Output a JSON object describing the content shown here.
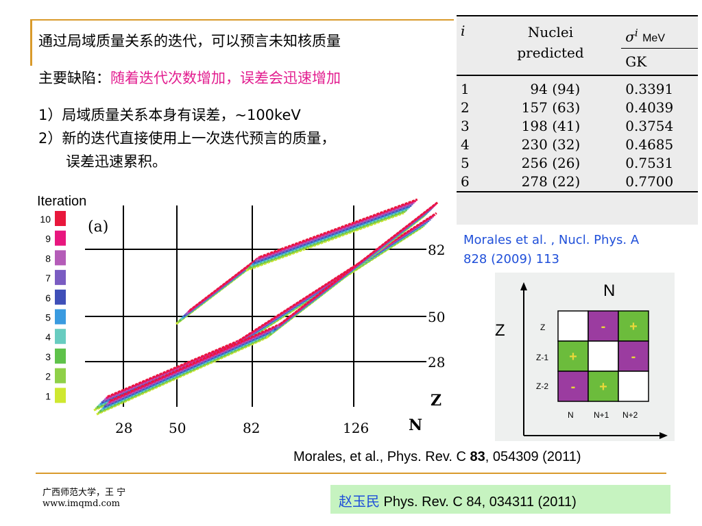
{
  "slide": {
    "line1": "通过局域质量关系的迭代，可以预言未知核质量",
    "line2_prefix": "主要缺陷：",
    "line2_highlight": "随着迭代次数增加，误差会迅速增加",
    "point1": "1）局域质量关系本身有误差，~100keV",
    "point2": "2）新的迭代直接使用上一次迭代预言的质量，",
    "point2_cont": "误差迅速累积。"
  },
  "table": {
    "header_i": "i",
    "header_nuclei_1": "Nuclei",
    "header_nuclei_2": "predicted",
    "header_sigma_symbol": "σ",
    "header_sigma_sup": "i",
    "header_sigma_unit": "MeV",
    "header_gk": "GK",
    "rows": [
      {
        "i": "1",
        "nuclei": "94 (94)",
        "gk": "0.3391"
      },
      {
        "i": "2",
        "nuclei": "157 (63)",
        "gk": "0.4039"
      },
      {
        "i": "3",
        "nuclei": "198 (41)",
        "gk": "0.3754"
      },
      {
        "i": "4",
        "nuclei": "230 (32)",
        "gk": "0.4685"
      },
      {
        "i": "5",
        "nuclei": "256 (26)",
        "gk": "0.7531"
      },
      {
        "i": "6",
        "nuclei": "278 (22)",
        "gk": "0.7700"
      }
    ]
  },
  "citations": {
    "table_ref_1": "Morales et al. , Nucl. Phys. A",
    "table_ref_2": "828 (2009) 113",
    "figure_ref_pre": "Morales, et al., Phys. Rev. C ",
    "figure_ref_bold": "83",
    "figure_ref_post": ", 054309 (2011)",
    "box_ref_name": "赵玉民",
    "box_ref_rest": " Phys. Rev. C 84, 034311 (2011)"
  },
  "footer": {
    "line1": "广西师范大学，王 宁",
    "line2": "www.imqmd.com"
  },
  "chart_data": {
    "type": "scatter",
    "title": "Iteration",
    "panel_label": "(a)",
    "xlabel": "N",
    "ylabel": "Z",
    "x_ticks": [
      "28",
      "50",
      "82",
      "126"
    ],
    "y_ticks": [
      "28",
      "50",
      "82"
    ],
    "legend": [
      "10",
      "9",
      "8",
      "7",
      "6",
      "5",
      "4",
      "3",
      "2",
      "1"
    ],
    "legend_colors": [
      "#e8173c",
      "#e8177e",
      "#b45cb8",
      "#7a5cc2",
      "#3f4fb8",
      "#3a9be0",
      "#68ccc0",
      "#5fc24a",
      "#8fd048",
      "#cfe830"
    ]
  },
  "grid_diagram": {
    "col_title": "N",
    "row_title": "Z",
    "row_labels": [
      "Z",
      "Z-1",
      "Z-2"
    ],
    "col_labels": [
      "N",
      "N+1",
      "N+2"
    ],
    "cells": [
      [
        "",
        "-",
        "+"
      ],
      [
        "+",
        "",
        "-"
      ],
      [
        "-",
        "+",
        ""
      ]
    ],
    "colors": {
      "plus": "#6cbc3c",
      "minus": "#9b3ca0"
    }
  }
}
